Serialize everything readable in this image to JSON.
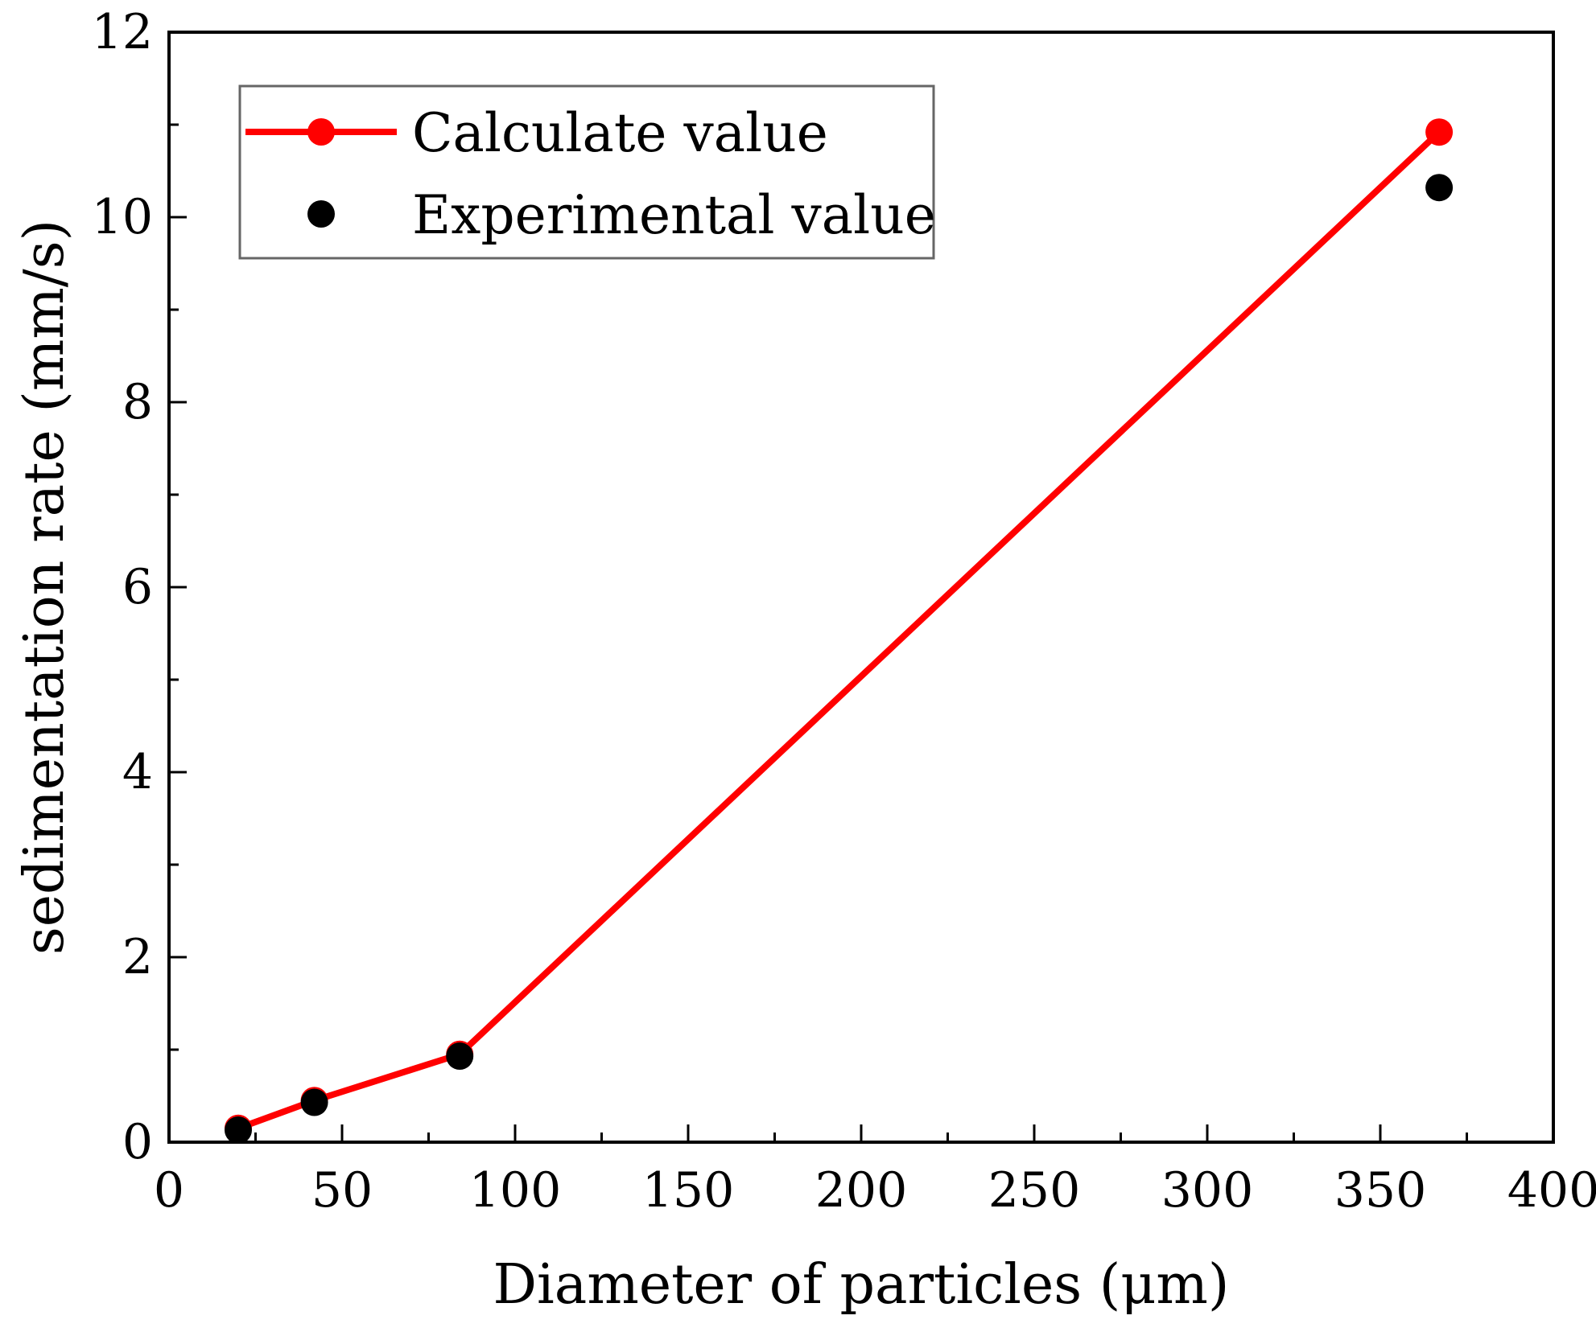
{
  "chart_data": {
    "type": "line",
    "title": "",
    "xlabel": "Diameter of particles (μm)",
    "ylabel": "sedimentation rate (mm/s)",
    "xlim": [
      0,
      400
    ],
    "ylim": [
      0,
      12
    ],
    "xticks": [
      0,
      50,
      100,
      150,
      200,
      250,
      300,
      350,
      400
    ],
    "yticks": [
      0,
      2,
      4,
      6,
      8,
      10,
      12
    ],
    "grid": false,
    "legend_position": "top-left",
    "series": [
      {
        "name": "Calculate value",
        "style": "line-marker",
        "color": "#ff0000",
        "x": [
          20,
          42,
          84,
          367
        ],
        "y": [
          0.15,
          0.45,
          0.95,
          10.92
        ]
      },
      {
        "name": "Experimental value",
        "style": "marker",
        "color": "#000000",
        "x": [
          20,
          42,
          84,
          367
        ],
        "y": [
          0.13,
          0.43,
          0.93,
          10.32
        ]
      }
    ]
  }
}
